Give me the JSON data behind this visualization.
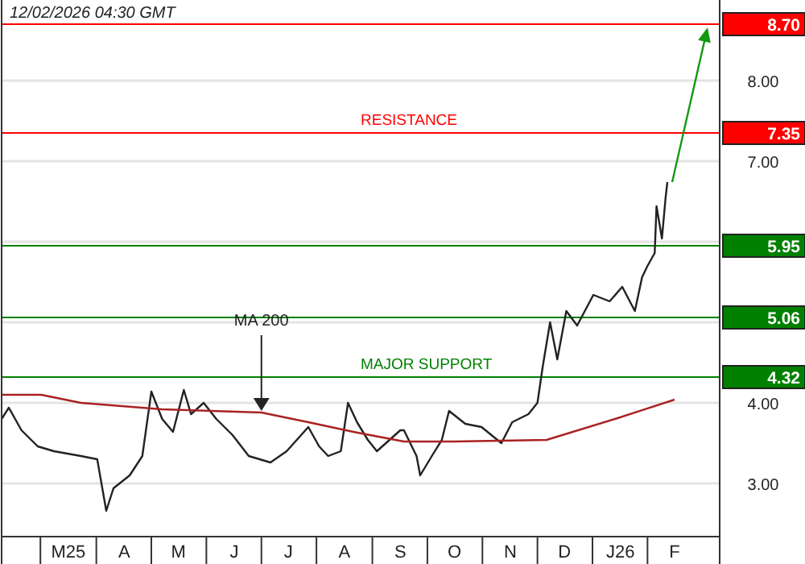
{
  "chart_data": {
    "type": "line",
    "annotations": [
      "12/02/2026 04:30 GMT",
      "8.70",
      "7.35",
      "5.95",
      "5.06",
      "4.32"
    ],
    "xlim": [
      "2025-02-07",
      "2026-03-12"
    ],
    "xticks": [
      {
        "value": "2025-03-16",
        "label": "M25"
      },
      {
        "value": "2025-04-16",
        "label": "A"
      },
      {
        "value": "2025-05-16",
        "label": "M"
      },
      {
        "value": "2025-06-16",
        "label": "J"
      },
      {
        "value": "2025-07-16",
        "label": "J"
      },
      {
        "value": "2025-08-16",
        "label": "A"
      },
      {
        "value": "2025-09-16",
        "label": "S"
      },
      {
        "value": "2025-10-16",
        "label": "O"
      },
      {
        "value": "2025-11-16",
        "label": "N"
      },
      {
        "value": "2025-12-16",
        "label": "D"
      },
      {
        "value": "2026-01-16",
        "label": "J26"
      },
      {
        "value": "2026-02-15",
        "label": "F"
      }
    ],
    "ylim": [
      2.34,
      9.0
    ],
    "yticks": [
      {
        "value": 3,
        "label": "3.00"
      },
      {
        "value": 4,
        "label": "4.00"
      },
      {
        "value": 5,
        "label": null
      },
      {
        "value": 6,
        "label": null
      },
      {
        "value": 7,
        "label": "7.00"
      },
      {
        "value": 8,
        "label": "8.00"
      }
    ],
    "grid": "y",
    "marker": "none",
    "line_style": "solid",
    "series": [
      {
        "color": "#222222",
        "x": [
          "2025-02-07",
          "2025-02-11",
          "2025-02-18",
          "2025-02-27",
          "2025-03-08",
          "2025-03-23",
          "2025-04-01",
          "2025-04-06",
          "2025-04-10",
          "2025-04-19",
          "2025-04-26",
          "2025-05-01",
          "2025-05-07",
          "2025-05-13",
          "2025-05-19",
          "2025-05-23",
          "2025-05-30",
          "2025-06-06",
          "2025-06-15",
          "2025-06-24",
          "2025-07-06",
          "2025-07-15",
          "2025-07-27",
          "2025-08-02",
          "2025-08-07",
          "2025-08-14",
          "2025-08-18",
          "2025-08-23",
          "2025-08-29",
          "2025-09-03",
          "2025-09-16",
          "2025-09-18",
          "2025-09-25",
          "2025-09-27",
          "2025-10-04",
          "2025-10-09",
          "2025-10-13",
          "2025-10-22",
          "2025-10-31",
          "2025-11-11",
          "2025-11-17",
          "2025-11-26",
          "2025-12-01",
          "2025-12-04",
          "2025-12-08",
          "2025-12-12",
          "2025-12-17",
          "2025-12-23",
          "2026-01-01",
          "2026-01-10",
          "2026-01-17",
          "2026-01-24",
          "2026-01-28",
          "2026-01-31",
          "2026-02-04",
          "2026-02-05",
          "2026-02-08",
          "2026-02-10",
          "2026-02-11"
        ],
        "values": [
          3.8,
          3.94,
          3.66,
          3.46,
          3.4,
          3.34,
          3.3,
          2.66,
          2.94,
          3.1,
          3.34,
          4.14,
          3.8,
          3.64,
          4.16,
          3.86,
          4.0,
          3.8,
          3.6,
          3.34,
          3.26,
          3.4,
          3.7,
          3.46,
          3.34,
          3.4,
          4.0,
          3.76,
          3.54,
          3.4,
          3.66,
          3.66,
          3.34,
          3.1,
          3.36,
          3.54,
          3.9,
          3.74,
          3.7,
          3.5,
          3.76,
          3.86,
          4.0,
          4.46,
          5.0,
          4.54,
          5.14,
          4.96,
          5.34,
          5.26,
          5.44,
          5.14,
          5.56,
          5.7,
          5.86,
          6.44,
          6.04,
          6.54,
          6.74
        ]
      },
      {
        "name": "MA 200",
        "color": "#aa2222",
        "x": [
          "2025-02-07",
          "2025-03-01",
          "2025-03-23",
          "2025-05-07",
          "2025-07-01",
          "2025-07-27",
          "2025-08-21",
          "2025-09-18",
          "2025-10-15",
          "2025-12-06",
          "2026-01-13",
          "2026-02-15"
        ],
        "values": [
          4.1,
          4.1,
          4.0,
          3.92,
          3.88,
          3.76,
          3.64,
          3.52,
          3.52,
          3.54,
          3.8,
          4.04
        ]
      }
    ],
    "ref_lines": [
      {
        "axis": "y",
        "value": 8.7,
        "color": "#ff0000"
      },
      {
        "axis": "y",
        "value": 7.35,
        "label": "RESISTANCE",
        "color": "#ff0000"
      },
      {
        "axis": "y",
        "value": 5.95,
        "color": "#008000"
      },
      {
        "axis": "y",
        "value": 5.06,
        "color": "#008000"
      },
      {
        "axis": "y",
        "value": 4.32,
        "label": "MAJOR SUPPORT",
        "color": "#008000"
      }
    ]
  }
}
